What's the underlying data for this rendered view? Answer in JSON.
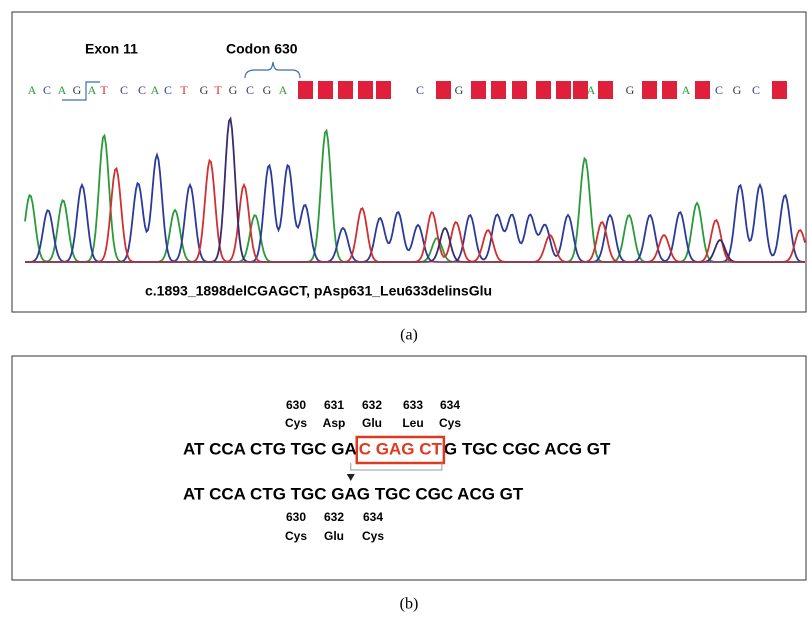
{
  "panel_a": {
    "exon_label": "Exon 11",
    "codon_label": "Codon 630",
    "bases": [
      "A",
      "C",
      "A",
      "G",
      "A",
      "T",
      "C",
      "C",
      "A",
      "C",
      "T",
      "G",
      "T",
      "G",
      "C",
      "G",
      "A",
      "C",
      "G",
      "A",
      "G",
      "A",
      "C",
      "G",
      "C"
    ],
    "mutation": "c.1893_1898delCGAGCT, pAsp631_Leu633delinsGlu",
    "caption": "(a)"
  },
  "panel_b": {
    "wild_codons": [
      {
        "number": "630",
        "aa": "Cys"
      },
      {
        "number": "631",
        "aa": "Asp"
      },
      {
        "number": "632",
        "aa": "Glu"
      },
      {
        "number": "633",
        "aa": "Leu"
      },
      {
        "number": "634",
        "aa": "Cys"
      }
    ],
    "wild_left": "AT CCA CTG TGC GA",
    "wild_boxed": "C GAG CT",
    "wild_right": "G TGC CGC ACG GT",
    "mutant_sequence": "AT CCA CTG TGC GAG TGC CGC ACG GT",
    "mutant_codons": [
      {
        "number": "630",
        "aa": "Cys"
      },
      {
        "number": "632",
        "aa": "Glu"
      },
      {
        "number": "634",
        "aa": "Cys"
      }
    ],
    "caption": "(b)"
  }
}
